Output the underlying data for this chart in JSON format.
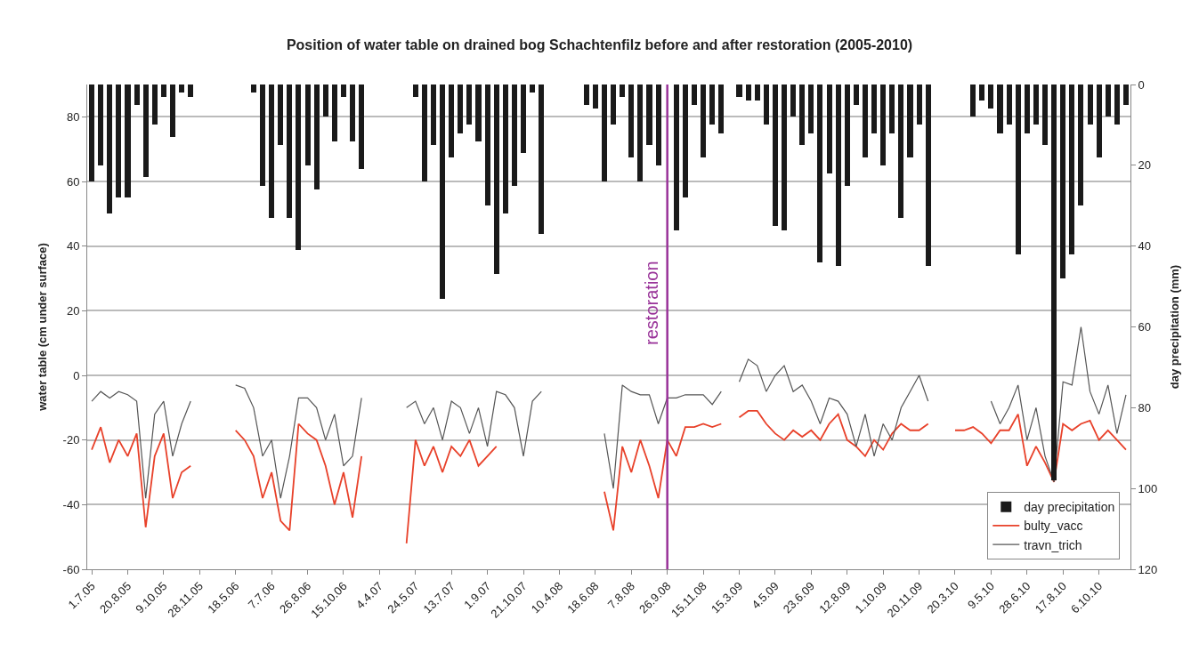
{
  "chart_data": {
    "type": "line",
    "title": "Position of water table on drained bog Schachtenfilz before and after restoration (2005-2010)",
    "ylabel": "water table (cm under surface)",
    "y2label": "day precipitation (mm)",
    "categories": [
      "1.7.05",
      null,
      null,
      null,
      "20.8.05",
      null,
      null,
      null,
      "9.10.05",
      null,
      null,
      null,
      "28.11.05",
      null,
      null,
      null,
      "18.5.06",
      null,
      null,
      null,
      "7.7.06",
      null,
      null,
      null,
      "26.8.06",
      null,
      null,
      null,
      "15.10.06",
      null,
      null,
      null,
      "4.4.07",
      null,
      null,
      null,
      "24.5.07",
      null,
      null,
      null,
      "13.7.07",
      null,
      null,
      null,
      "1.9.07",
      null,
      null,
      null,
      "21.10.07",
      null,
      null,
      null,
      "10.4.08",
      null,
      null,
      null,
      "18.6.08",
      null,
      null,
      null,
      "7.8.08",
      null,
      null,
      null,
      "26.9.08",
      null,
      null,
      null,
      "15.11.08",
      null,
      null,
      null,
      "15.3.09",
      null,
      null,
      null,
      "4.5.09",
      null,
      null,
      null,
      "23.6.09",
      null,
      null,
      null,
      "12.8.09",
      null,
      null,
      null,
      "1.10.09",
      null,
      null,
      null,
      "20.11.09",
      null,
      null,
      null,
      "20.3.10",
      null,
      null,
      null,
      "9.5.10",
      null,
      null,
      null,
      "28.6.10",
      null,
      null,
      null,
      "17.8.10",
      null,
      null,
      null,
      "6.10.10",
      null,
      null,
      null
    ],
    "series": [
      {
        "name": "day precipitation",
        "type": "bar",
        "axis": "y2",
        "color": "#1a1a1a",
        "values": [
          24,
          20,
          32,
          28,
          28,
          5,
          23,
          10,
          3,
          13,
          2,
          3,
          null,
          null,
          null,
          null,
          0,
          0,
          2,
          25,
          33,
          15,
          33,
          41,
          20,
          26,
          8,
          14,
          3,
          14,
          21,
          null,
          null,
          null,
          null,
          0,
          3,
          24,
          15,
          53,
          18,
          12,
          10,
          14,
          30,
          47,
          32,
          25,
          17,
          2,
          37,
          null,
          null,
          null,
          null,
          5,
          6,
          24,
          10,
          3,
          18,
          24,
          15,
          20,
          null,
          36,
          28,
          5,
          18,
          10,
          12,
          null,
          3,
          4,
          4,
          10,
          35,
          36,
          8,
          15,
          12,
          44,
          22,
          45,
          25,
          5,
          18,
          12,
          20,
          12,
          33,
          18,
          10,
          45,
          null,
          null,
          0,
          0,
          8,
          4,
          6,
          12,
          10,
          42,
          12,
          10,
          15,
          98,
          48,
          42,
          30,
          10,
          18,
          8,
          10,
          5
        ]
      },
      {
        "name": "bulty_vacc",
        "color": "#e8412a",
        "values": [
          -23,
          -16,
          -27,
          -20,
          -25,
          -18,
          -47,
          -25,
          -18,
          -38,
          -30,
          -28,
          null,
          null,
          null,
          null,
          -17,
          -20,
          -25,
          -38,
          -30,
          -45,
          -48,
          -15,
          -18,
          -20,
          -28,
          -40,
          -30,
          -44,
          -25,
          null,
          null,
          null,
          null,
          -52,
          -20,
          -28,
          -22,
          -30,
          -22,
          -25,
          -20,
          -28,
          -25,
          -22,
          null,
          null,
          null,
          null,
          null,
          null,
          null,
          null,
          null,
          null,
          null,
          -36,
          -48,
          -22,
          -30,
          -20,
          -28,
          -38,
          -20,
          -25,
          -16,
          -16,
          -15,
          -16,
          -15,
          null,
          -13,
          -11,
          -11,
          -15,
          -18,
          -20,
          -17,
          -19,
          -17,
          -20,
          -15,
          -12,
          -20,
          -22,
          -25,
          -20,
          -23,
          -18,
          -15,
          -17,
          -17,
          -15,
          null,
          null,
          -17,
          -17,
          -16,
          -18,
          -21,
          -17,
          -17,
          -12,
          -28,
          -22,
          -27,
          -33,
          -15,
          -17,
          -15,
          -14,
          -20,
          -17,
          -20,
          -23
        ]
      },
      {
        "name": "travn_trich",
        "color": "#555555",
        "values": [
          -8,
          -5,
          -7,
          -5,
          -6,
          -8,
          -38,
          -12,
          -8,
          -25,
          -15,
          -8,
          null,
          null,
          null,
          null,
          -3,
          -4,
          -10,
          -25,
          -20,
          -38,
          -25,
          -7,
          -7,
          -10,
          -20,
          -12,
          -28,
          -25,
          -7,
          null,
          null,
          null,
          null,
          -10,
          -8,
          -15,
          -10,
          -20,
          -8,
          -10,
          -18,
          -10,
          -22,
          -5,
          -6,
          -10,
          -25,
          -8,
          -5,
          null,
          null,
          null,
          null,
          null,
          null,
          -18,
          -35,
          -3,
          -5,
          -6,
          -6,
          -15,
          -7,
          -7,
          -6,
          -6,
          -6,
          -9,
          -5,
          null,
          -2,
          5,
          3,
          -5,
          0,
          3,
          -5,
          -3,
          -8,
          -15,
          -7,
          -8,
          -12,
          -22,
          -12,
          -25,
          -15,
          -20,
          -10,
          -5,
          0,
          -8,
          null,
          null,
          null,
          null,
          null,
          null,
          -8,
          -15,
          -10,
          -3,
          -20,
          -10,
          -25,
          -33,
          -2,
          -3,
          15,
          -5,
          -12,
          -3,
          -18,
          -6
        ]
      }
    ],
    "ylim": [
      -60,
      90
    ],
    "yticks": [
      -60,
      -40,
      -20,
      0,
      20,
      40,
      60,
      80
    ],
    "y2lim": [
      120,
      0
    ],
    "y2ticks": [
      0,
      20,
      40,
      60,
      80,
      100,
      120
    ],
    "ref_lines": [
      {
        "axis": "x",
        "value": "26.9.08",
        "label": "restoration",
        "color": "#993399"
      }
    ],
    "grid": "y",
    "legend": "bottom right",
    "marker": "none",
    "line_style": "solid"
  }
}
